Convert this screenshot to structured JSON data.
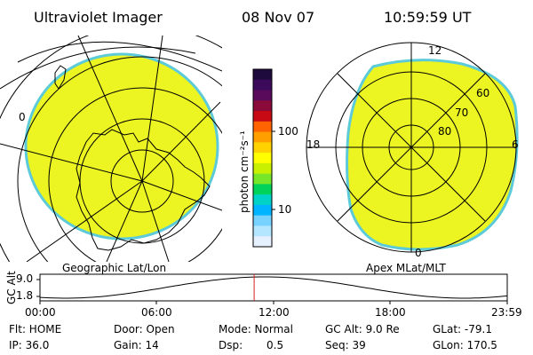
{
  "header": {
    "title": "Ultraviolet Imager",
    "date": "08 Nov 07",
    "time": "10:59:59 UT"
  },
  "left_map": {
    "label": "Geographic Lat/Lon",
    "edge_tick": "0"
  },
  "right_map": {
    "label": "Apex MLat/MLT",
    "mlt_labels": [
      "12",
      "18",
      "6",
      "0"
    ],
    "lat_labels": [
      "80",
      "70",
      "60"
    ]
  },
  "colorbar": {
    "unit": "photon cm⁻²s⁻¹",
    "tick_labels": [
      "100",
      "10"
    ],
    "colors": [
      "#1e0a3c",
      "#3c0a5a",
      "#5a0a5a",
      "#8a0a3a",
      "#c80a14",
      "#ff6400",
      "#ffa000",
      "#ffd200",
      "#ffff00",
      "#c8f000",
      "#78e628",
      "#00d25a",
      "#00d2c8",
      "#00b4ff",
      "#78d2ff",
      "#b4e6ff",
      "#e6f0ff"
    ]
  },
  "timeline": {
    "ylabel": "GC Alt",
    "y_ticks": [
      "9.0",
      "1.8"
    ],
    "x_ticks": [
      "00:00",
      "06:00",
      "12:00",
      "18:00",
      "23:59"
    ],
    "current_time": "10:59:59"
  },
  "footer": {
    "flt": "Flt: HOME",
    "ip": "IP: 36.0",
    "door": "Door: Open",
    "gain": "Gain: 14",
    "mode": "Mode: Normal",
    "dsp_label": "Dsp:",
    "dsp_value": "0.5",
    "gc_alt": "GC Alt: 9.0 Re",
    "seq": "Seq: 39",
    "glat": "GLat: -79.1",
    "glon": "GLon: 170.5"
  },
  "colors": {
    "aurora_fill": "#ecf522",
    "aurora_edge": "#5ccad8",
    "marker": "#d02020"
  }
}
